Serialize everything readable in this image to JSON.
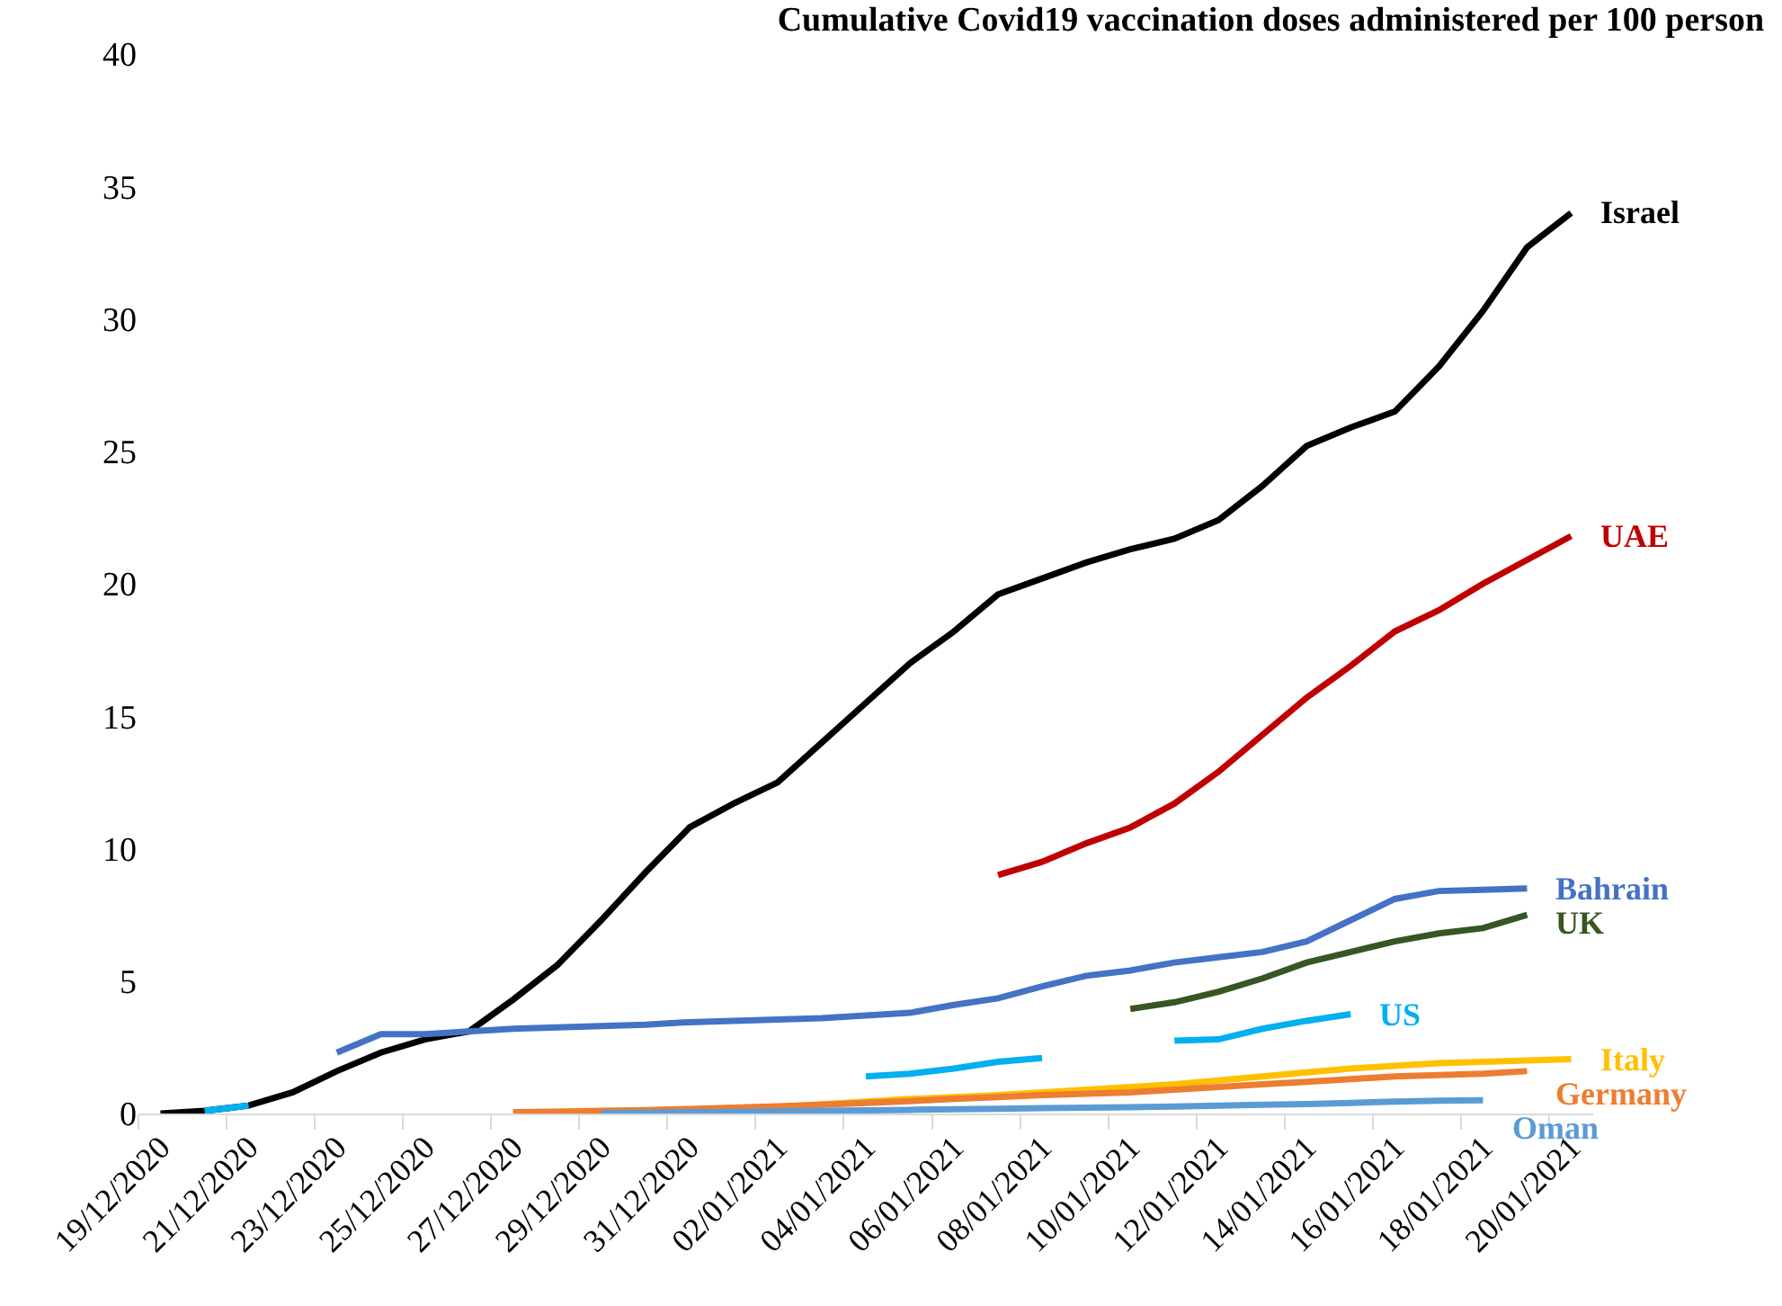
{
  "chart_data": {
    "type": "line",
    "title": "Cumulative Covid19 vaccination doses administered per 100 person",
    "categories": [
      "19/12/2020",
      null,
      "21/12/2020",
      null,
      "23/12/2020",
      null,
      "25/12/2020",
      null,
      "27/12/2020",
      null,
      "29/12/2020",
      null,
      "31/12/2020",
      null,
      "02/01/2021",
      null,
      "04/01/2021",
      null,
      "06/01/2021",
      null,
      "08/01/2021",
      null,
      "10/01/2021",
      null,
      "12/01/2021",
      null,
      "14/01/2021",
      null,
      "16/01/2021",
      null,
      "18/01/2021",
      null,
      "20/01/2021"
    ],
    "ylim": [
      0,
      40
    ],
    "yticks": [
      0,
      5,
      10,
      15,
      20,
      25,
      30,
      35,
      40
    ],
    "grid": false,
    "legend": false,
    "line_style": "solid",
    "series": [
      {
        "name": "Israel",
        "color": "#000000",
        "values": [
          0,
          0.1,
          0.3,
          0.8,
          1.6,
          2.3,
          2.8,
          3.1,
          4.3,
          5.6,
          7.3,
          9.1,
          10.8,
          11.7,
          12.5,
          14.0,
          15.5,
          17.0,
          18.2,
          19.6,
          20.2,
          20.8,
          21.3,
          21.7,
          22.4,
          23.7,
          25.2,
          25.9,
          26.5,
          28.2,
          30.3,
          32.7,
          34.0
        ]
      },
      {
        "name": "UAE",
        "color": "#c00000",
        "values": [
          null,
          null,
          null,
          null,
          null,
          null,
          null,
          null,
          null,
          null,
          null,
          null,
          null,
          null,
          null,
          null,
          null,
          null,
          null,
          9.0,
          9.5,
          10.2,
          10.8,
          11.7,
          12.9,
          14.3,
          15.7,
          16.9,
          18.2,
          19.0,
          20.0,
          20.9,
          21.8
        ]
      },
      {
        "name": "Bahrain",
        "color": "#4472c4",
        "values": [
          null,
          null,
          null,
          null,
          2.3,
          3.0,
          3.0,
          3.1,
          3.2,
          3.25,
          3.3,
          3.35,
          3.45,
          3.5,
          3.55,
          3.6,
          3.7,
          3.8,
          4.1,
          4.35,
          4.8,
          5.2,
          5.4,
          5.7,
          5.9,
          6.1,
          6.5,
          7.3,
          8.1,
          8.4,
          8.45,
          8.5,
          null
        ]
      },
      {
        "name": "UK",
        "color": "#375623",
        "values": [
          null,
          null,
          null,
          null,
          null,
          null,
          null,
          null,
          null,
          null,
          null,
          null,
          null,
          null,
          null,
          null,
          null,
          null,
          null,
          null,
          null,
          null,
          3.95,
          4.2,
          4.6,
          5.1,
          5.7,
          6.1,
          6.5,
          6.8,
          7.0,
          7.5,
          null
        ]
      },
      {
        "name": "US",
        "color": "#00b0f0",
        "values": [
          null,
          0.1,
          0.3,
          null,
          null,
          null,
          null,
          null,
          null,
          null,
          null,
          null,
          null,
          null,
          null,
          null,
          1.4,
          1.5,
          1.7,
          1.95,
          2.1,
          null,
          null,
          2.75,
          2.8,
          3.2,
          3.5,
          3.75,
          null,
          null,
          null,
          null,
          null
        ]
      },
      {
        "name": "Italy",
        "color": "#ffc000",
        "values": [
          null,
          null,
          null,
          null,
          null,
          null,
          null,
          null,
          0.05,
          0.06,
          0.08,
          0.1,
          0.15,
          0.2,
          0.25,
          0.35,
          0.45,
          0.55,
          0.62,
          0.7,
          0.8,
          0.9,
          1.0,
          1.1,
          1.25,
          1.4,
          1.55,
          1.7,
          1.8,
          1.9,
          1.95,
          2.0,
          2.05
        ]
      },
      {
        "name": "Germany",
        "color": "#ed7d31",
        "values": [
          null,
          null,
          null,
          null,
          null,
          null,
          null,
          null,
          0.05,
          0.07,
          0.1,
          0.13,
          0.17,
          0.22,
          0.27,
          0.33,
          0.4,
          0.47,
          0.55,
          0.62,
          0.7,
          0.75,
          0.8,
          0.9,
          1.0,
          1.1,
          1.2,
          1.3,
          1.4,
          1.45,
          1.5,
          1.6,
          null
        ]
      },
      {
        "name": "Oman",
        "color": "#5b9bd5",
        "values": [
          null,
          null,
          null,
          null,
          null,
          null,
          null,
          null,
          null,
          null,
          0.02,
          0.03,
          0.05,
          0.06,
          0.08,
          0.1,
          0.12,
          0.14,
          0.16,
          0.18,
          0.2,
          0.22,
          0.24,
          0.26,
          0.3,
          0.33,
          0.36,
          0.4,
          0.45,
          0.48,
          0.5,
          null,
          null
        ]
      }
    ]
  }
}
